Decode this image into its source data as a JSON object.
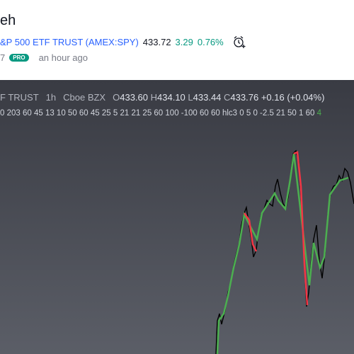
{
  "header": {
    "title": "eh",
    "symbol": "&P 500 ETF TRUST (AMEX:SPY)",
    "last": "433.72",
    "change": "3.29",
    "change_pct": "0.76%"
  },
  "meta": {
    "count": "7",
    "badge": "PRO",
    "time": "an hour ago"
  },
  "chart": {
    "symbol": "F TRUST",
    "interval": "1h",
    "source": "Cboe BZX",
    "ohlc": [
      {
        "key": "O",
        "value": "433.60"
      },
      {
        "key": "H",
        "value": "434.10"
      },
      {
        "key": "L",
        "value": "433.44"
      },
      {
        "key": "C",
        "value": "433.76"
      }
    ],
    "change": "+0.16 (+0.04%)",
    "indicator": "0 203 60 45 13 10 50 60 45 25 5 21 21 25 60 100 -100 60 60 hlc3 0 5 0 -2.5 21 50 1 60",
    "indicator_tail": "4"
  }
}
